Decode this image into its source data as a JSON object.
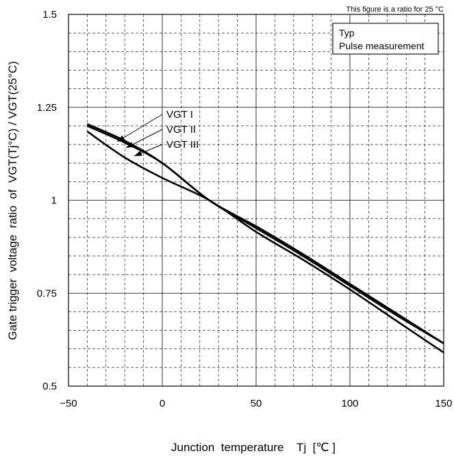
{
  "chart_data": {
    "type": "line",
    "title": "",
    "note": "This figure is a ratio for 25 °C",
    "xlabel": "Junction  temperature    Tj  [℃ ]",
    "ylabel": "Gate trigger  voltage  ratio  of  VGT(Tj°C) / VGT(25°C)",
    "xlim": [
      -50,
      150
    ],
    "ylim": [
      0.5,
      1.5
    ],
    "x_ticks": [
      "−50",
      "0",
      "50",
      "100",
      "150"
    ],
    "y_ticks": [
      "0.5",
      "0.75",
      "1",
      "1.25",
      "1.5"
    ],
    "grid": true,
    "legend_box": [
      "Typ",
      "Pulse measurement"
    ],
    "series": [
      {
        "name": "VGT I",
        "x": [
          -40,
          -20,
          0,
          25,
          50,
          75,
          100,
          125,
          150
        ],
        "y": [
          1.205,
          1.16,
          1.1,
          1.0,
          0.93,
          0.855,
          0.775,
          0.695,
          0.615
        ]
      },
      {
        "name": "VGT II",
        "x": [
          -40,
          -20,
          0,
          25,
          50,
          75,
          100,
          125,
          150
        ],
        "y": [
          1.2,
          1.155,
          1.1,
          1.0,
          0.925,
          0.85,
          0.77,
          0.69,
          0.615
        ]
      },
      {
        "name": "VGT III",
        "x": [
          -40,
          -20,
          0,
          25,
          50,
          75,
          100,
          125,
          150
        ],
        "y": [
          1.185,
          1.115,
          1.06,
          1.0,
          0.915,
          0.84,
          0.76,
          0.675,
          0.59
        ]
      }
    ]
  }
}
